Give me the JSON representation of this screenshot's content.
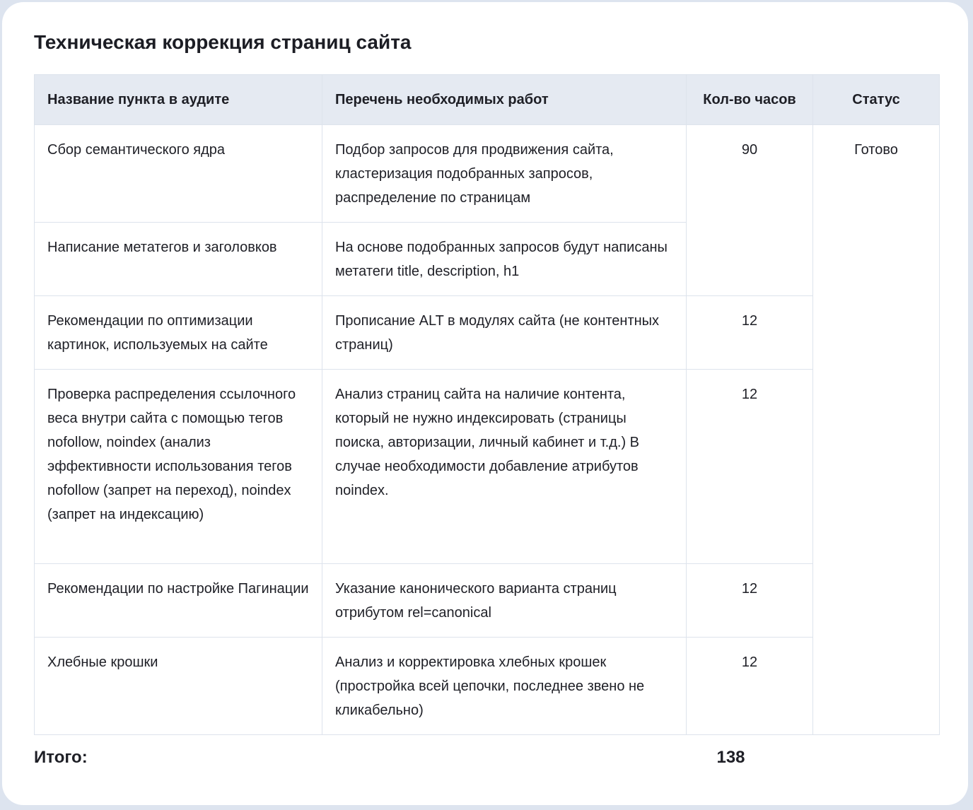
{
  "title": "Техническая коррекция страниц сайта",
  "columns": [
    "Название пункта в аудите",
    "Перечень необходимых работ",
    "Кол-во часов",
    "Статус"
  ],
  "rows": [
    {
      "item": "Сбор семантического ядра",
      "work": "Подбор запросов для продвижения сайта, кластеризация подобранных запросов, распределение по страницам",
      "hours": "90"
    },
    {
      "item": "Написание метатегов и заголовков",
      "work": "На основе подобранных запросов будут написаны метатеги title, description, h1",
      "hours": ""
    },
    {
      "item": "Рекомендации по оптимизации картинок, используемых на сайте",
      "work": "Прописание ALT в модулях сайта (не контентных страниц)",
      "hours": "12"
    },
    {
      "item": "Проверка распределения ссылочного веса внутри сайта с помощью тегов nofollow, noindex (анализ эффективности использования тегов nofollow (запрет на переход), noindex (запрет на индексацию)",
      "work": "Анализ страниц сайта на наличие контента, который не нужно индексировать (страницы поиска, авторизации, личный кабинет и т.д.) В случае необходимости добавление атрибутов noindex.",
      "hours": "12"
    },
    {
      "item": "Рекомендации по настройке Пагинации",
      "work": "Указание канонического варианта страниц отрибутом rel=canonical",
      "hours": "12"
    },
    {
      "item": "Хлебные крошки",
      "work": "Анализ и корректировка хлебных крошек (простройка всей цепочки, последнее звено не кликабельно)",
      "hours": "12"
    }
  ],
  "status": "Готово",
  "total_label": "Итого:",
  "total_hours": "138"
}
